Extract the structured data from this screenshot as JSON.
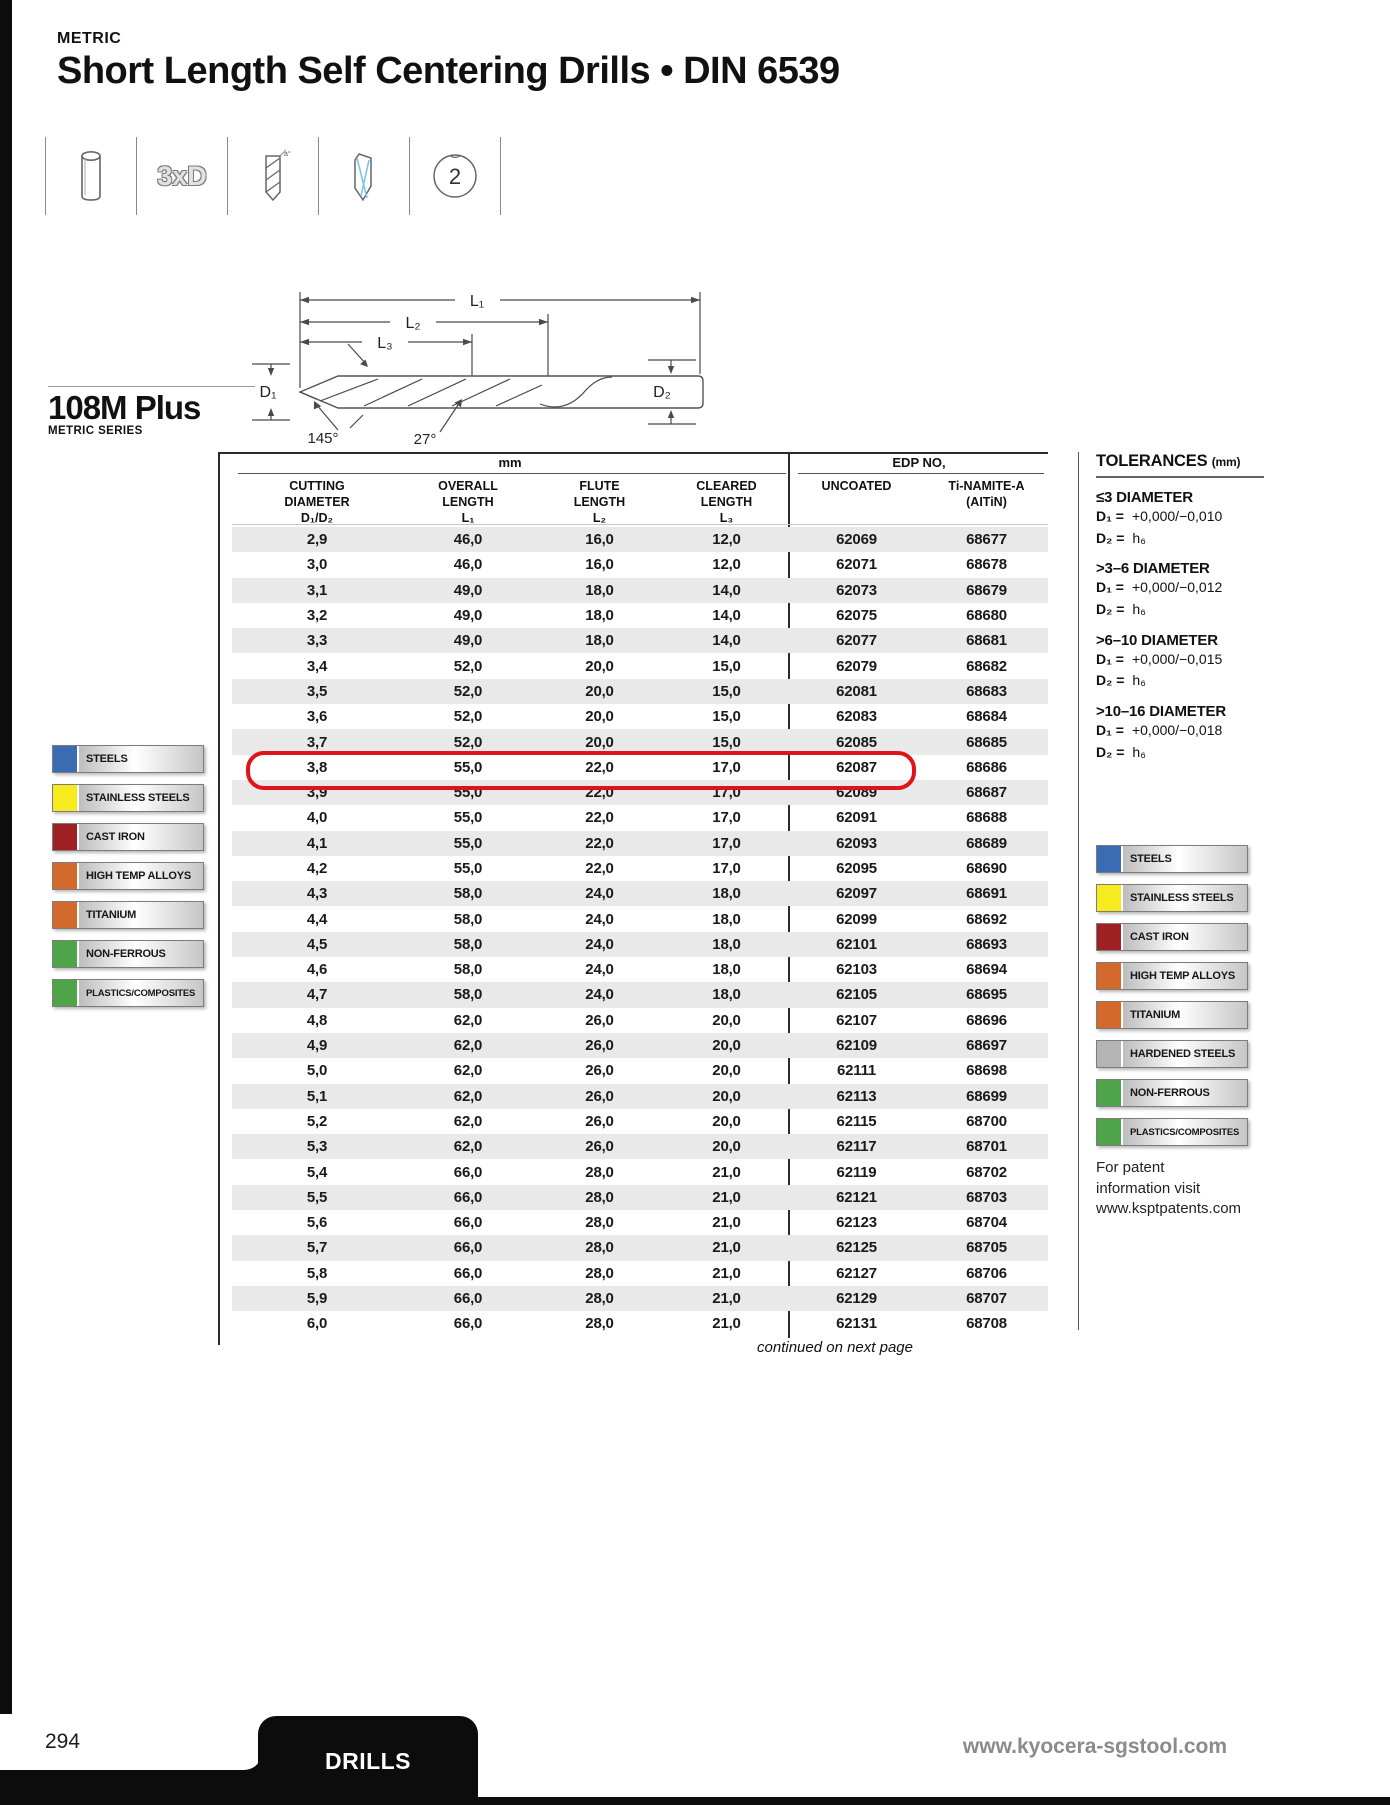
{
  "page": {
    "eyebrow": "METRIC",
    "title": "Short Length Self Centering Drills • DIN 6539",
    "page_number": "294",
    "footer_tab": "DRILLS",
    "website": "www.kyocera-sgstool.com"
  },
  "series": {
    "name": "108M Plus",
    "subtitle": "METRIC SERIES"
  },
  "icons": {
    "ratio_label": "3xD",
    "flute_count": "2",
    "helix_mark": "a°"
  },
  "diagram": {
    "l1": "L₁",
    "l2": "L₂",
    "l3": "L₃",
    "d1": "D₁",
    "d2": "D₂",
    "point_angle": "145°",
    "helix_angle": "27°"
  },
  "table": {
    "unit_header": "mm",
    "edp_header": "EDP NO,",
    "columns": [
      [
        "CUTTING",
        "DIAMETER",
        "D₁/D₂"
      ],
      [
        "OVERALL",
        "LENGTH",
        "L₁"
      ],
      [
        "FLUTE",
        "LENGTH",
        "L₂"
      ],
      [
        "CLEARED",
        "LENGTH",
        "L₃"
      ],
      [
        "UNCOATED"
      ],
      [
        "Ti-NAMITE-A",
        "(AITiN)"
      ]
    ],
    "rows": [
      [
        "2,9",
        "46,0",
        "16,0",
        "12,0",
        "62069",
        "68677"
      ],
      [
        "3,0",
        "46,0",
        "16,0",
        "12,0",
        "62071",
        "68678"
      ],
      [
        "3,1",
        "49,0",
        "18,0",
        "14,0",
        "62073",
        "68679"
      ],
      [
        "3,2",
        "49,0",
        "18,0",
        "14,0",
        "62075",
        "68680"
      ],
      [
        "3,3",
        "49,0",
        "18,0",
        "14,0",
        "62077",
        "68681"
      ],
      [
        "3,4",
        "52,0",
        "20,0",
        "15,0",
        "62079",
        "68682"
      ],
      [
        "3,5",
        "52,0",
        "20,0",
        "15,0",
        "62081",
        "68683"
      ],
      [
        "3,6",
        "52,0",
        "20,0",
        "15,0",
        "62083",
        "68684"
      ],
      [
        "3,7",
        "52,0",
        "20,0",
        "15,0",
        "62085",
        "68685"
      ],
      [
        "3,8",
        "55,0",
        "22,0",
        "17,0",
        "62087",
        "68686"
      ],
      [
        "3,9",
        "55,0",
        "22,0",
        "17,0",
        "62089",
        "68687"
      ],
      [
        "4,0",
        "55,0",
        "22,0",
        "17,0",
        "62091",
        "68688"
      ],
      [
        "4,1",
        "55,0",
        "22,0",
        "17,0",
        "62093",
        "68689"
      ],
      [
        "4,2",
        "55,0",
        "22,0",
        "17,0",
        "62095",
        "68690"
      ],
      [
        "4,3",
        "58,0",
        "24,0",
        "18,0",
        "62097",
        "68691"
      ],
      [
        "4,4",
        "58,0",
        "24,0",
        "18,0",
        "62099",
        "68692"
      ],
      [
        "4,5",
        "58,0",
        "24,0",
        "18,0",
        "62101",
        "68693"
      ],
      [
        "4,6",
        "58,0",
        "24,0",
        "18,0",
        "62103",
        "68694"
      ],
      [
        "4,7",
        "58,0",
        "24,0",
        "18,0",
        "62105",
        "68695"
      ],
      [
        "4,8",
        "62,0",
        "26,0",
        "20,0",
        "62107",
        "68696"
      ],
      [
        "4,9",
        "62,0",
        "26,0",
        "20,0",
        "62109",
        "68697"
      ],
      [
        "5,0",
        "62,0",
        "26,0",
        "20,0",
        "62111",
        "68698"
      ],
      [
        "5,1",
        "62,0",
        "26,0",
        "20,0",
        "62113",
        "68699"
      ],
      [
        "5,2",
        "62,0",
        "26,0",
        "20,0",
        "62115",
        "68700"
      ],
      [
        "5,3",
        "62,0",
        "26,0",
        "20,0",
        "62117",
        "68701"
      ],
      [
        "5,4",
        "66,0",
        "28,0",
        "21,0",
        "62119",
        "68702"
      ],
      [
        "5,5",
        "66,0",
        "28,0",
        "21,0",
        "62121",
        "68703"
      ],
      [
        "5,6",
        "66,0",
        "28,0",
        "21,0",
        "62123",
        "68704"
      ],
      [
        "5,7",
        "66,0",
        "28,0",
        "21,0",
        "62125",
        "68705"
      ],
      [
        "5,8",
        "66,0",
        "28,0",
        "21,0",
        "62127",
        "68706"
      ],
      [
        "5,9",
        "66,0",
        "28,0",
        "21,0",
        "62129",
        "68707"
      ],
      [
        "6,0",
        "66,0",
        "28,0",
        "21,0",
        "62131",
        "68708"
      ]
    ],
    "highlight_index": 9,
    "continued_note": "continued on next page"
  },
  "highlight": {
    "color": "#e0131a"
  },
  "tolerances": {
    "title": "TOLERANCES",
    "title_unit": "(mm)",
    "sections": [
      {
        "heading": "≤3 DIAMETER",
        "lines": [
          {
            "k": "D₁ =",
            "v": "+0,000/−0,010"
          },
          {
            "k": "D₂ =",
            "v": "h₆"
          }
        ]
      },
      {
        "heading": ">3–6 DIAMETER",
        "lines": [
          {
            "k": "D₁ =",
            "v": "+0,000/−0,012"
          },
          {
            "k": "D₂ =",
            "v": "h₆"
          }
        ]
      },
      {
        "heading": ">6–10 DIAMETER",
        "lines": [
          {
            "k": "D₁ =",
            "v": "+0,000/−0,015"
          },
          {
            "k": "D₂ =",
            "v": "h₆"
          }
        ]
      },
      {
        "heading": ">10–16 DIAMETER",
        "lines": [
          {
            "k": "D₁ =",
            "v": "+0,000/−0,018"
          },
          {
            "k": "D₂ =",
            "v": "h₆"
          }
        ]
      }
    ]
  },
  "materials": {
    "left": [
      {
        "label": "STEELS",
        "color": "#3a6cb4"
      },
      {
        "label": "STAINLESS STEELS",
        "color": "#f6eb1e"
      },
      {
        "label": "CAST IRON",
        "color": "#9e2023"
      },
      {
        "label": "HIGH TEMP ALLOYS",
        "color": "#d4692c"
      },
      {
        "label": "TITANIUM",
        "color": "#d4692c"
      },
      {
        "label": "NON-FERROUS",
        "color": "#4fa349"
      },
      {
        "label": "PLASTICS/COMPOSITES",
        "color": "#4fa349"
      }
    ],
    "right": [
      {
        "label": "STEELS",
        "color": "#3a6cb4"
      },
      {
        "label": "STAINLESS STEELS",
        "color": "#f6eb1e"
      },
      {
        "label": "CAST IRON",
        "color": "#9e2023"
      },
      {
        "label": "HIGH TEMP ALLOYS",
        "color": "#d4692c"
      },
      {
        "label": "TITANIUM",
        "color": "#d4692c"
      },
      {
        "label": "HARDENED STEELS",
        "color": "#b4b4b4"
      },
      {
        "label": "NON-FERROUS",
        "color": "#4fa349"
      },
      {
        "label": "PLASTICS/COMPOSITES",
        "color": "#4fa349"
      }
    ]
  },
  "patent_note": {
    "lines": [
      "For patent",
      "information visit",
      "www.ksptpatents.com"
    ]
  }
}
